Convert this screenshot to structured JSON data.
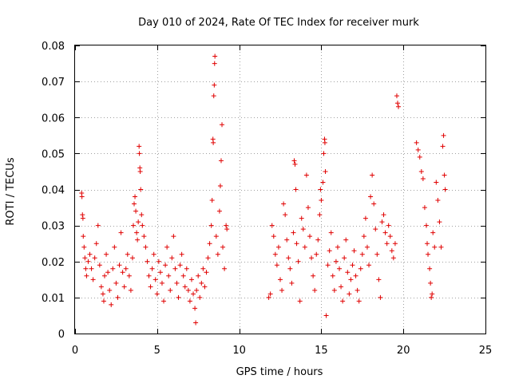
{
  "chart_data": {
    "type": "scatter",
    "title": "Day 010 of 2024, Rate Of TEC Index for receiver murk",
    "xlabel": "GPS time / hours",
    "ylabel": "ROTI / TECUs",
    "xlim": [
      0,
      25
    ],
    "ylim": [
      0,
      0.08
    ],
    "x_ticks": [
      0,
      5,
      10,
      15,
      20,
      25
    ],
    "x_tick_labels": [
      "0",
      "5",
      "10",
      "15",
      "20",
      "25"
    ],
    "y_ticks": [
      0,
      0.01,
      0.02,
      0.03,
      0.04,
      0.05,
      0.06,
      0.07,
      0.08
    ],
    "y_tick_labels": [
      "0",
      "0.01",
      "0.02",
      "0.03",
      "0.04",
      "0.05",
      "0.06",
      "0.07",
      "0.08"
    ],
    "grid": true,
    "marker": "+",
    "color": "#e00000",
    "series": [
      {
        "name": "ROTI",
        "points": [
          [
            0.4,
            0.039
          ],
          [
            0.42,
            0.038
          ],
          [
            0.45,
            0.033
          ],
          [
            0.48,
            0.032
          ],
          [
            0.5,
            0.027
          ],
          [
            0.55,
            0.024
          ],
          [
            0.6,
            0.021
          ],
          [
            0.65,
            0.018
          ],
          [
            0.7,
            0.016
          ],
          [
            0.8,
            0.02
          ],
          [
            0.9,
            0.022
          ],
          [
            1.0,
            0.018
          ],
          [
            1.1,
            0.015
          ],
          [
            1.2,
            0.021
          ],
          [
            1.3,
            0.025
          ],
          [
            1.4,
            0.03
          ],
          [
            1.5,
            0.019
          ],
          [
            1.6,
            0.013
          ],
          [
            1.7,
            0.011
          ],
          [
            1.75,
            0.009
          ],
          [
            1.8,
            0.016
          ],
          [
            1.9,
            0.022
          ],
          [
            2.0,
            0.017
          ],
          [
            2.1,
            0.012
          ],
          [
            2.2,
            0.008
          ],
          [
            2.3,
            0.018
          ],
          [
            2.4,
            0.024
          ],
          [
            2.5,
            0.014
          ],
          [
            2.6,
            0.01
          ],
          [
            2.7,
            0.019
          ],
          [
            2.8,
            0.028
          ],
          [
            2.9,
            0.017
          ],
          [
            3.0,
            0.013
          ],
          [
            3.1,
            0.018
          ],
          [
            3.2,
            0.022
          ],
          [
            3.3,
            0.016
          ],
          [
            3.4,
            0.012
          ],
          [
            3.5,
            0.021
          ],
          [
            3.55,
            0.03
          ],
          [
            3.6,
            0.036
          ],
          [
            3.65,
            0.038
          ],
          [
            3.7,
            0.034
          ],
          [
            3.75,
            0.028
          ],
          [
            3.8,
            0.026
          ],
          [
            3.85,
            0.031
          ],
          [
            3.9,
            0.052
          ],
          [
            3.92,
            0.05
          ],
          [
            3.95,
            0.046
          ],
          [
            3.97,
            0.045
          ],
          [
            4.0,
            0.04
          ],
          [
            4.05,
            0.033
          ],
          [
            4.1,
            0.03
          ],
          [
            4.2,
            0.027
          ],
          [
            4.3,
            0.024
          ],
          [
            4.4,
            0.02
          ],
          [
            4.5,
            0.016
          ],
          [
            4.6,
            0.013
          ],
          [
            4.7,
            0.018
          ],
          [
            4.8,
            0.022
          ],
          [
            4.9,
            0.015
          ],
          [
            5.0,
            0.011
          ],
          [
            5.1,
            0.02
          ],
          [
            5.2,
            0.017
          ],
          [
            5.3,
            0.014
          ],
          [
            5.4,
            0.009
          ],
          [
            5.5,
            0.019
          ],
          [
            5.6,
            0.024
          ],
          [
            5.7,
            0.016
          ],
          [
            5.8,
            0.012
          ],
          [
            5.9,
            0.021
          ],
          [
            6.0,
            0.027
          ],
          [
            6.1,
            0.018
          ],
          [
            6.2,
            0.014
          ],
          [
            6.3,
            0.01
          ],
          [
            6.4,
            0.019
          ],
          [
            6.5,
            0.022
          ],
          [
            6.6,
            0.016
          ],
          [
            6.7,
            0.013
          ],
          [
            6.8,
            0.018
          ],
          [
            6.9,
            0.012
          ],
          [
            7.0,
            0.009
          ],
          [
            7.1,
            0.015
          ],
          [
            7.2,
            0.011
          ],
          [
            7.3,
            0.007
          ],
          [
            7.35,
            0.003
          ],
          [
            7.4,
            0.012
          ],
          [
            7.5,
            0.016
          ],
          [
            7.6,
            0.01
          ],
          [
            7.7,
            0.014
          ],
          [
            7.8,
            0.018
          ],
          [
            7.9,
            0.013
          ],
          [
            8.0,
            0.017
          ],
          [
            8.1,
            0.021
          ],
          [
            8.2,
            0.025
          ],
          [
            8.3,
            0.03
          ],
          [
            8.35,
            0.037
          ],
          [
            8.4,
            0.054
          ],
          [
            8.42,
            0.053
          ],
          [
            8.45,
            0.066
          ],
          [
            8.48,
            0.069
          ],
          [
            8.5,
            0.075
          ],
          [
            8.52,
            0.077
          ],
          [
            8.6,
            0.027
          ],
          [
            8.7,
            0.022
          ],
          [
            8.8,
            0.034
          ],
          [
            8.85,
            0.041
          ],
          [
            8.9,
            0.048
          ],
          [
            8.95,
            0.058
          ],
          [
            9.0,
            0.024
          ],
          [
            9.1,
            0.018
          ],
          [
            9.2,
            0.03
          ],
          [
            9.25,
            0.029
          ],
          [
            11.8,
            0.01
          ],
          [
            11.9,
            0.011
          ],
          [
            12.0,
            0.03
          ],
          [
            12.1,
            0.027
          ],
          [
            12.2,
            0.022
          ],
          [
            12.3,
            0.019
          ],
          [
            12.4,
            0.024
          ],
          [
            12.5,
            0.015
          ],
          [
            12.6,
            0.012
          ],
          [
            12.7,
            0.036
          ],
          [
            12.8,
            0.033
          ],
          [
            12.9,
            0.026
          ],
          [
            13.0,
            0.021
          ],
          [
            13.1,
            0.018
          ],
          [
            13.2,
            0.014
          ],
          [
            13.3,
            0.028
          ],
          [
            13.35,
            0.048
          ],
          [
            13.4,
            0.047
          ],
          [
            13.45,
            0.04
          ],
          [
            13.5,
            0.025
          ],
          [
            13.6,
            0.02
          ],
          [
            13.7,
            0.009
          ],
          [
            13.8,
            0.032
          ],
          [
            13.9,
            0.029
          ],
          [
            14.0,
            0.024
          ],
          [
            14.1,
            0.044
          ],
          [
            14.2,
            0.035
          ],
          [
            14.3,
            0.027
          ],
          [
            14.4,
            0.021
          ],
          [
            14.5,
            0.016
          ],
          [
            14.6,
            0.012
          ],
          [
            14.7,
            0.022
          ],
          [
            14.8,
            0.026
          ],
          [
            14.9,
            0.033
          ],
          [
            14.95,
            0.04
          ],
          [
            15.0,
            0.037
          ],
          [
            15.1,
            0.042
          ],
          [
            15.15,
            0.05
          ],
          [
            15.2,
            0.054
          ],
          [
            15.22,
            0.053
          ],
          [
            15.25,
            0.045
          ],
          [
            15.3,
            0.005
          ],
          [
            15.4,
            0.019
          ],
          [
            15.5,
            0.023
          ],
          [
            15.6,
            0.028
          ],
          [
            15.7,
            0.016
          ],
          [
            15.8,
            0.012
          ],
          [
            15.9,
            0.02
          ],
          [
            16.0,
            0.024
          ],
          [
            16.1,
            0.018
          ],
          [
            16.2,
            0.013
          ],
          [
            16.3,
            0.009
          ],
          [
            16.4,
            0.021
          ],
          [
            16.5,
            0.026
          ],
          [
            16.6,
            0.017
          ],
          [
            16.7,
            0.011
          ],
          [
            16.8,
            0.015
          ],
          [
            16.9,
            0.019
          ],
          [
            17.0,
            0.023
          ],
          [
            17.1,
            0.016
          ],
          [
            17.2,
            0.012
          ],
          [
            17.3,
            0.009
          ],
          [
            17.4,
            0.018
          ],
          [
            17.5,
            0.022
          ],
          [
            17.6,
            0.027
          ],
          [
            17.7,
            0.032
          ],
          [
            17.8,
            0.024
          ],
          [
            17.9,
            0.019
          ],
          [
            18.0,
            0.038
          ],
          [
            18.1,
            0.044
          ],
          [
            18.2,
            0.036
          ],
          [
            18.3,
            0.029
          ],
          [
            18.4,
            0.022
          ],
          [
            18.5,
            0.015
          ],
          [
            18.6,
            0.01
          ],
          [
            18.7,
            0.031
          ],
          [
            18.8,
            0.033
          ],
          [
            18.9,
            0.028
          ],
          [
            19.0,
            0.025
          ],
          [
            19.1,
            0.03
          ],
          [
            19.2,
            0.027
          ],
          [
            19.3,
            0.023
          ],
          [
            19.4,
            0.021
          ],
          [
            19.5,
            0.025
          ],
          [
            19.6,
            0.066
          ],
          [
            19.65,
            0.064
          ],
          [
            19.7,
            0.063
          ],
          [
            20.8,
            0.053
          ],
          [
            20.9,
            0.051
          ],
          [
            21.0,
            0.049
          ],
          [
            21.1,
            0.045
          ],
          [
            21.2,
            0.043
          ],
          [
            21.3,
            0.035
          ],
          [
            21.4,
            0.03
          ],
          [
            21.45,
            0.025
          ],
          [
            21.5,
            0.022
          ],
          [
            21.6,
            0.018
          ],
          [
            21.65,
            0.014
          ],
          [
            21.7,
            0.01
          ],
          [
            21.75,
            0.011
          ],
          [
            21.8,
            0.028
          ],
          [
            21.9,
            0.024
          ],
          [
            22.0,
            0.042
          ],
          [
            22.1,
            0.037
          ],
          [
            22.2,
            0.031
          ],
          [
            22.3,
            0.024
          ],
          [
            22.4,
            0.052
          ],
          [
            22.45,
            0.055
          ],
          [
            22.5,
            0.044
          ],
          [
            22.55,
            0.04
          ]
        ]
      }
    ]
  }
}
